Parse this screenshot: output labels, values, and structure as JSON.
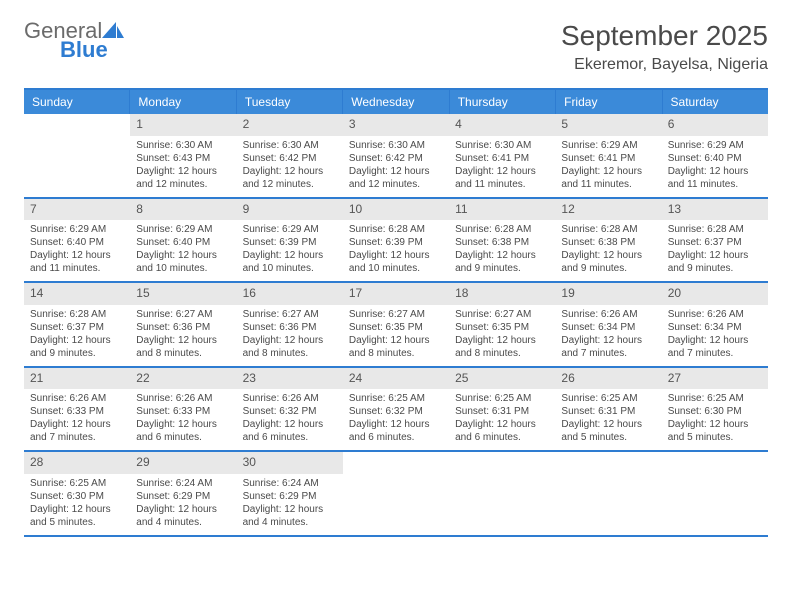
{
  "logo": {
    "text1": "General",
    "text2": "Blue"
  },
  "title": "September 2025",
  "subtitle": "Ekeremor, Bayelsa, Nigeria",
  "day_names": [
    "Sunday",
    "Monday",
    "Tuesday",
    "Wednesday",
    "Thursday",
    "Friday",
    "Saturday"
  ],
  "colors": {
    "header_bg": "#3b8ad9",
    "border": "#2e7cd1",
    "daynum_bg": "#e8e8e8",
    "text": "#4a4a4a",
    "logo_blue": "#2e7cd1",
    "logo_gray": "#6b6b6b"
  },
  "weeks": [
    [
      {
        "n": "",
        "sunrise": "",
        "sunset": "",
        "daylight": ""
      },
      {
        "n": "1",
        "sunrise": "Sunrise: 6:30 AM",
        "sunset": "Sunset: 6:43 PM",
        "daylight": "Daylight: 12 hours and 12 minutes."
      },
      {
        "n": "2",
        "sunrise": "Sunrise: 6:30 AM",
        "sunset": "Sunset: 6:42 PM",
        "daylight": "Daylight: 12 hours and 12 minutes."
      },
      {
        "n": "3",
        "sunrise": "Sunrise: 6:30 AM",
        "sunset": "Sunset: 6:42 PM",
        "daylight": "Daylight: 12 hours and 12 minutes."
      },
      {
        "n": "4",
        "sunrise": "Sunrise: 6:30 AM",
        "sunset": "Sunset: 6:41 PM",
        "daylight": "Daylight: 12 hours and 11 minutes."
      },
      {
        "n": "5",
        "sunrise": "Sunrise: 6:29 AM",
        "sunset": "Sunset: 6:41 PM",
        "daylight": "Daylight: 12 hours and 11 minutes."
      },
      {
        "n": "6",
        "sunrise": "Sunrise: 6:29 AM",
        "sunset": "Sunset: 6:40 PM",
        "daylight": "Daylight: 12 hours and 11 minutes."
      }
    ],
    [
      {
        "n": "7",
        "sunrise": "Sunrise: 6:29 AM",
        "sunset": "Sunset: 6:40 PM",
        "daylight": "Daylight: 12 hours and 11 minutes."
      },
      {
        "n": "8",
        "sunrise": "Sunrise: 6:29 AM",
        "sunset": "Sunset: 6:40 PM",
        "daylight": "Daylight: 12 hours and 10 minutes."
      },
      {
        "n": "9",
        "sunrise": "Sunrise: 6:29 AM",
        "sunset": "Sunset: 6:39 PM",
        "daylight": "Daylight: 12 hours and 10 minutes."
      },
      {
        "n": "10",
        "sunrise": "Sunrise: 6:28 AM",
        "sunset": "Sunset: 6:39 PM",
        "daylight": "Daylight: 12 hours and 10 minutes."
      },
      {
        "n": "11",
        "sunrise": "Sunrise: 6:28 AM",
        "sunset": "Sunset: 6:38 PM",
        "daylight": "Daylight: 12 hours and 9 minutes."
      },
      {
        "n": "12",
        "sunrise": "Sunrise: 6:28 AM",
        "sunset": "Sunset: 6:38 PM",
        "daylight": "Daylight: 12 hours and 9 minutes."
      },
      {
        "n": "13",
        "sunrise": "Sunrise: 6:28 AM",
        "sunset": "Sunset: 6:37 PM",
        "daylight": "Daylight: 12 hours and 9 minutes."
      }
    ],
    [
      {
        "n": "14",
        "sunrise": "Sunrise: 6:28 AM",
        "sunset": "Sunset: 6:37 PM",
        "daylight": "Daylight: 12 hours and 9 minutes."
      },
      {
        "n": "15",
        "sunrise": "Sunrise: 6:27 AM",
        "sunset": "Sunset: 6:36 PM",
        "daylight": "Daylight: 12 hours and 8 minutes."
      },
      {
        "n": "16",
        "sunrise": "Sunrise: 6:27 AM",
        "sunset": "Sunset: 6:36 PM",
        "daylight": "Daylight: 12 hours and 8 minutes."
      },
      {
        "n": "17",
        "sunrise": "Sunrise: 6:27 AM",
        "sunset": "Sunset: 6:35 PM",
        "daylight": "Daylight: 12 hours and 8 minutes."
      },
      {
        "n": "18",
        "sunrise": "Sunrise: 6:27 AM",
        "sunset": "Sunset: 6:35 PM",
        "daylight": "Daylight: 12 hours and 8 minutes."
      },
      {
        "n": "19",
        "sunrise": "Sunrise: 6:26 AM",
        "sunset": "Sunset: 6:34 PM",
        "daylight": "Daylight: 12 hours and 7 minutes."
      },
      {
        "n": "20",
        "sunrise": "Sunrise: 6:26 AM",
        "sunset": "Sunset: 6:34 PM",
        "daylight": "Daylight: 12 hours and 7 minutes."
      }
    ],
    [
      {
        "n": "21",
        "sunrise": "Sunrise: 6:26 AM",
        "sunset": "Sunset: 6:33 PM",
        "daylight": "Daylight: 12 hours and 7 minutes."
      },
      {
        "n": "22",
        "sunrise": "Sunrise: 6:26 AM",
        "sunset": "Sunset: 6:33 PM",
        "daylight": "Daylight: 12 hours and 6 minutes."
      },
      {
        "n": "23",
        "sunrise": "Sunrise: 6:26 AM",
        "sunset": "Sunset: 6:32 PM",
        "daylight": "Daylight: 12 hours and 6 minutes."
      },
      {
        "n": "24",
        "sunrise": "Sunrise: 6:25 AM",
        "sunset": "Sunset: 6:32 PM",
        "daylight": "Daylight: 12 hours and 6 minutes."
      },
      {
        "n": "25",
        "sunrise": "Sunrise: 6:25 AM",
        "sunset": "Sunset: 6:31 PM",
        "daylight": "Daylight: 12 hours and 6 minutes."
      },
      {
        "n": "26",
        "sunrise": "Sunrise: 6:25 AM",
        "sunset": "Sunset: 6:31 PM",
        "daylight": "Daylight: 12 hours and 5 minutes."
      },
      {
        "n": "27",
        "sunrise": "Sunrise: 6:25 AM",
        "sunset": "Sunset: 6:30 PM",
        "daylight": "Daylight: 12 hours and 5 minutes."
      }
    ],
    [
      {
        "n": "28",
        "sunrise": "Sunrise: 6:25 AM",
        "sunset": "Sunset: 6:30 PM",
        "daylight": "Daylight: 12 hours and 5 minutes."
      },
      {
        "n": "29",
        "sunrise": "Sunrise: 6:24 AM",
        "sunset": "Sunset: 6:29 PM",
        "daylight": "Daylight: 12 hours and 4 minutes."
      },
      {
        "n": "30",
        "sunrise": "Sunrise: 6:24 AM",
        "sunset": "Sunset: 6:29 PM",
        "daylight": "Daylight: 12 hours and 4 minutes."
      },
      {
        "n": "",
        "sunrise": "",
        "sunset": "",
        "daylight": ""
      },
      {
        "n": "",
        "sunrise": "",
        "sunset": "",
        "daylight": ""
      },
      {
        "n": "",
        "sunrise": "",
        "sunset": "",
        "daylight": ""
      },
      {
        "n": "",
        "sunrise": "",
        "sunset": "",
        "daylight": ""
      }
    ]
  ]
}
